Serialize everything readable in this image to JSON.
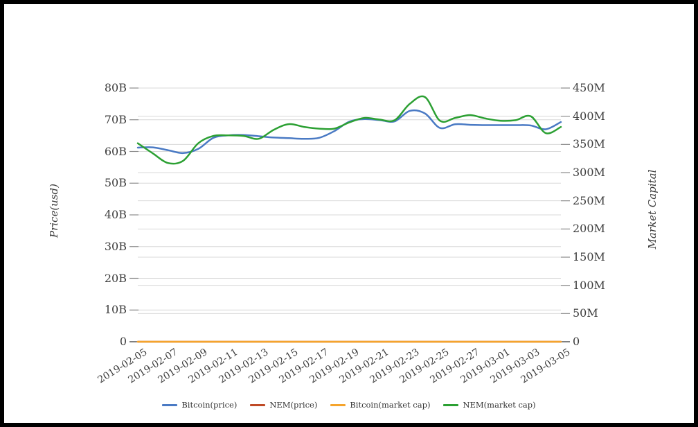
{
  "chart_data": {
    "type": "line",
    "title": "",
    "x": [
      "2019-02-05",
      "2019-02-06",
      "2019-02-07",
      "2019-02-08",
      "2019-02-09",
      "2019-02-10",
      "2019-02-11",
      "2019-02-12",
      "2019-02-13",
      "2019-02-14",
      "2019-02-15",
      "2019-02-16",
      "2019-02-17",
      "2019-02-18",
      "2019-02-19",
      "2019-02-20",
      "2019-02-21",
      "2019-02-22",
      "2019-02-23",
      "2019-02-24",
      "2019-02-25",
      "2019-02-26",
      "2019-02-27",
      "2019-02-28",
      "2019-03-01",
      "2019-03-02",
      "2019-03-03",
      "2019-03-04",
      "2019-03-05"
    ],
    "x_tick_labels": [
      "2019-02-05",
      "2019-02-07",
      "2019-02-09",
      "2019-02-11",
      "2019-02-13",
      "2019-02-15",
      "2019-02-17",
      "2019-02-19",
      "2019-02-21",
      "2019-02-23",
      "2019-02-25",
      "2019-02-27",
      "2019-03-01",
      "2019-03-03",
      "2019-03-05"
    ],
    "left_axis": {
      "label": "Price(usd)",
      "unit": "billions of USD",
      "max": 80,
      "tick_values": [
        0,
        10,
        20,
        30,
        40,
        50,
        60,
        70,
        80
      ],
      "tick_labels": [
        "0",
        "10B",
        "20B",
        "30B",
        "40B",
        "50B",
        "60B",
        "70B",
        "80B"
      ]
    },
    "right_axis": {
      "label": "Market Capital",
      "unit": "millions of USD",
      "max": 450,
      "tick_values": [
        0,
        50,
        100,
        150,
        200,
        250,
        300,
        350,
        400,
        450
      ],
      "tick_labels": [
        "0",
        "50M",
        "100M",
        "150M",
        "200M",
        "250M",
        "300M",
        "350M",
        "400M",
        "450M"
      ]
    },
    "grid": true,
    "legend_position": "bottom",
    "series": [
      {
        "name": "Bitcoin(price)",
        "axis": "left",
        "color": "#4a7ac4",
        "values": [
          61.2,
          61.3,
          60.4,
          59.5,
          60.8,
          64.3,
          65.1,
          65.2,
          64.8,
          64.4,
          64.2,
          64.0,
          64.3,
          66.4,
          69.4,
          70.2,
          69.9,
          69.5,
          72.8,
          72.0,
          67.4,
          68.6,
          68.4,
          68.3,
          68.3,
          68.3,
          68.2,
          67.0,
          69.3
        ]
      },
      {
        "name": "NEM(price)",
        "axis": "left",
        "color": "#bf4a26",
        "values": [
          0,
          0,
          0,
          0,
          0,
          0,
          0,
          0,
          0,
          0,
          0,
          0,
          0,
          0,
          0,
          0,
          0,
          0,
          0,
          0,
          0,
          0,
          0,
          0,
          0,
          0,
          0,
          0,
          0
        ]
      },
      {
        "name": "Bitcoin(market cap)",
        "axis": "right",
        "color": "#f5a42c",
        "values": [
          0,
          0,
          0,
          0,
          0,
          0,
          0,
          0,
          0,
          0,
          0,
          0,
          0,
          0,
          0,
          0,
          0,
          0,
          0,
          0,
          0,
          0,
          0,
          0,
          0,
          0,
          0,
          0,
          0
        ]
      },
      {
        "name": "NEM(market cap)",
        "axis": "right",
        "color": "#2ca033",
        "values": [
          352,
          334,
          317,
          321,
          352,
          365,
          366,
          365,
          360,
          376,
          386,
          381,
          378,
          378,
          389,
          397,
          394,
          393,
          422,
          434,
          392,
          397,
          402,
          396,
          392,
          393,
          400,
          370,
          381
        ]
      }
    ]
  }
}
